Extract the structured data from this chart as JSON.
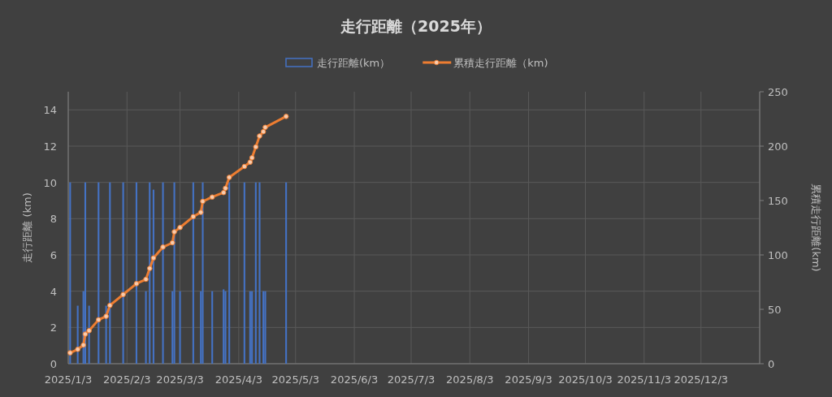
{
  "chart_data": {
    "type": "bar",
    "title": "走行距離（2025年）",
    "ylabel": "走行距離 (km)",
    "y2label": "累積走行距離(km)",
    "xlim": [
      "2025-01-03",
      "2026-01-03"
    ],
    "xticks": [
      {
        "value": "2025-01-03",
        "label": "2025/1/3"
      },
      {
        "value": "2025-02-03",
        "label": "2025/2/3"
      },
      {
        "value": "2025-03-03",
        "label": "2025/3/3"
      },
      {
        "value": "2025-04-03",
        "label": "2025/4/3"
      },
      {
        "value": "2025-05-03",
        "label": "2025/5/3"
      },
      {
        "value": "2025-06-03",
        "label": "2025/6/3"
      },
      {
        "value": "2025-07-03",
        "label": "2025/7/3"
      },
      {
        "value": "2025-08-03",
        "label": "2025/8/3"
      },
      {
        "value": "2025-09-03",
        "label": "2025/9/3"
      },
      {
        "value": "2025-10-03",
        "label": "2025/10/3"
      },
      {
        "value": "2025-11-03",
        "label": "2025/11/3"
      },
      {
        "value": "2025-12-03",
        "label": "2025/12/3"
      }
    ],
    "ylim": [
      0,
      15
    ],
    "yticks": [
      0,
      2,
      4,
      6,
      8,
      10,
      12,
      14
    ],
    "y2lim": [
      0,
      250
    ],
    "y2ticks": [
      0,
      50,
      100,
      150,
      200,
      250
    ],
    "x": [
      "2025-01-04",
      "2025-01-08",
      "2025-01-11",
      "2025-01-12",
      "2025-01-14",
      "2025-01-19",
      "2025-01-23",
      "2025-01-25",
      "2025-02-01",
      "2025-02-08",
      "2025-02-13",
      "2025-02-15",
      "2025-02-17",
      "2025-02-22",
      "2025-02-27",
      "2025-02-28",
      "2025-03-03",
      "2025-03-10",
      "2025-03-14",
      "2025-03-15",
      "2025-03-20",
      "2025-03-26",
      "2025-03-27",
      "2025-03-29",
      "2025-04-06",
      "2025-04-09",
      "2025-04-10",
      "2025-04-12",
      "2025-04-14",
      "2025-04-16",
      "2025-04-17",
      "2025-04-28"
    ],
    "series": [
      {
        "name": "走行距離(km）",
        "color": "#4472c4",
        "values": [
          10,
          3.2,
          4,
          10,
          3.2,
          10,
          3.2,
          10,
          10,
          10,
          4,
          10,
          9.6,
          10,
          4,
          10,
          4,
          10,
          4,
          10,
          4,
          4.1,
          4,
          10,
          10,
          4,
          4,
          10,
          10,
          4,
          4,
          10
        ]
      },
      {
        "name": "累積走行距離（km)",
        "type": "line",
        "axis": "y2",
        "color": "#ed7d31",
        "marker": "circle",
        "values": [
          10,
          13.2,
          17.2,
          27.2,
          30.4,
          40.4,
          43.6,
          53.6,
          63.6,
          73.6,
          77.6,
          87.6,
          97.2,
          107.2,
          111.2,
          121.2,
          125.2,
          135.2,
          139.2,
          149.2,
          153.2,
          157.3,
          161.3,
          171.3,
          181.3,
          185.3,
          189.3,
          199.3,
          209.3,
          213.3,
          217.3,
          227.3
        ]
      }
    ],
    "grid": true,
    "legend": "top"
  }
}
